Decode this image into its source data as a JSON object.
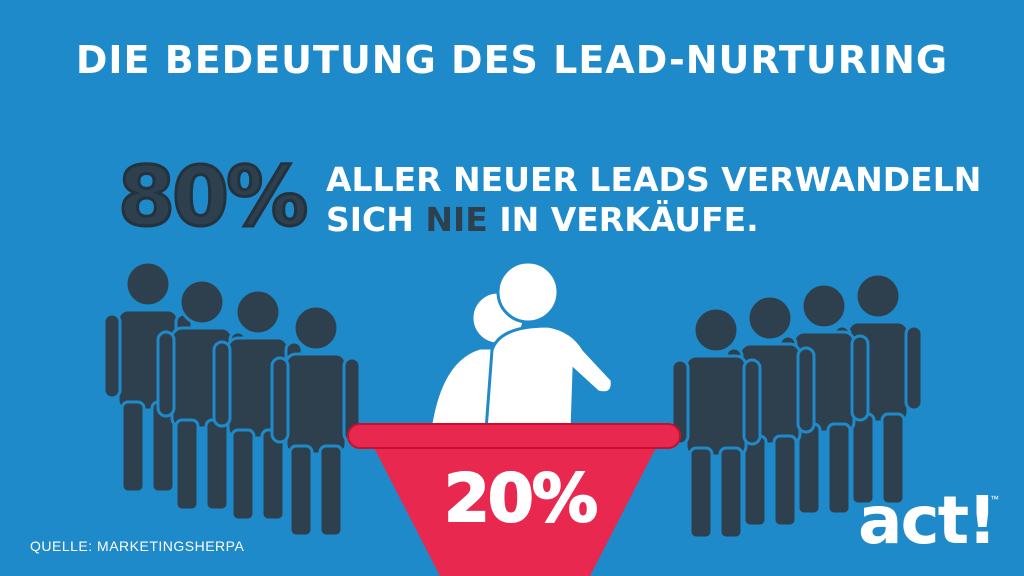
{
  "title": "DIE BEDEUTUNG DES LEAD-NURTURING",
  "stat_main": {
    "value": "80%",
    "text_line1": "ALLER NEUER LEADS VERWANDELN",
    "text_line2_pre": "SICH ",
    "text_line2_emph": "NIE",
    "text_line2_post": " IN VERKÄUFE."
  },
  "stat_converted": {
    "value": "20%"
  },
  "source": "QUELLE: MARKETINGSHERPA",
  "logo": {
    "text": "act!",
    "tm": "™"
  },
  "colors": {
    "background": "#1f8ac9",
    "dark_figure": "#2e3f4d",
    "funnel_red": "#e8284e",
    "funnel_rim": "#c8102e",
    "white": "#ffffff"
  },
  "icons": [
    "person-silhouette-icon",
    "funnel-icon"
  ]
}
